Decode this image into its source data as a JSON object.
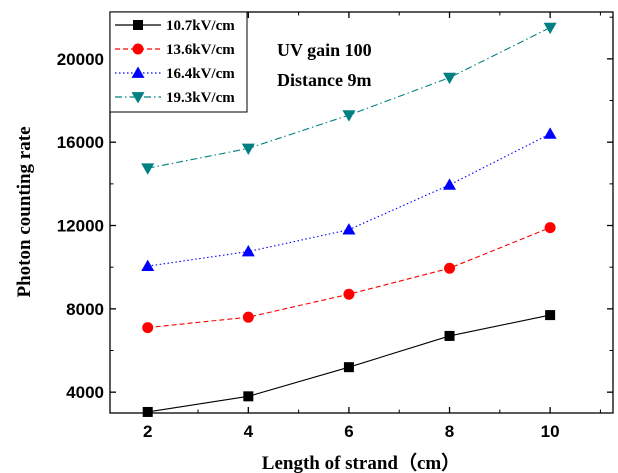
{
  "chart_data": {
    "type": "line",
    "title": "",
    "xlabel": "Length of strand（cm）",
    "ylabel": "Photon counting rate",
    "x": [
      2,
      4,
      6,
      8,
      10
    ],
    "xlim": [
      1.25,
      11.25
    ],
    "ylim": [
      3000,
      22250
    ],
    "xticks": [
      2,
      4,
      6,
      8,
      10
    ],
    "yticks": [
      4000,
      8000,
      12000,
      16000,
      20000
    ],
    "grid": false,
    "legend_position": "top-left",
    "series": [
      {
        "name": "10.7kV/cm",
        "values": [
          3050,
          3800,
          5200,
          6700,
          7700
        ],
        "color": "#000000",
        "marker": "square",
        "dash": "solid"
      },
      {
        "name": "13.6kV/cm",
        "values": [
          7100,
          7600,
          8700,
          9950,
          11900
        ],
        "color": "#ff0000",
        "marker": "circle",
        "dash": "dash"
      },
      {
        "name": "16.4kV/cm",
        "values": [
          10050,
          10750,
          11800,
          13950,
          16400
        ],
        "color": "#0000ff",
        "marker": "triangle-up",
        "dash": "dot"
      },
      {
        "name": "19.3kV/cm",
        "values": [
          14750,
          15700,
          17300,
          19100,
          21500
        ],
        "color": "#008080",
        "marker": "triangle-down",
        "dash": "dashdot"
      }
    ],
    "annotations": [
      "UV gain 100",
      "Distance 9m"
    ]
  }
}
